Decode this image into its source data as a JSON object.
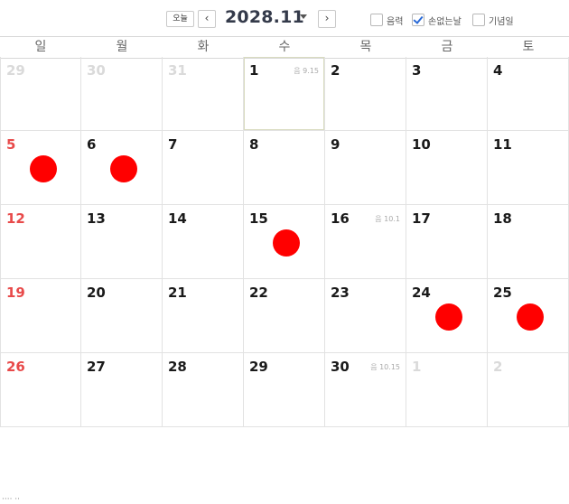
{
  "toolbar": {
    "today_label": "오늘",
    "prev_icon": "chevron-left-icon",
    "next_icon": "chevron-right-icon",
    "month_title": "2028.11",
    "options": [
      {
        "label": "음력",
        "checked": false
      },
      {
        "label": "손없는날",
        "checked": true
      },
      {
        "label": "기념일",
        "checked": false
      }
    ]
  },
  "calendar": {
    "weekdays": [
      "일",
      "월",
      "화",
      "수",
      "목",
      "금",
      "토"
    ],
    "weeks": [
      [
        {
          "day": "29",
          "muted": true
        },
        {
          "day": "30",
          "muted": true
        },
        {
          "day": "31",
          "muted": true
        },
        {
          "day": "1",
          "lunar": "음 9.15",
          "today": true
        },
        {
          "day": "2"
        },
        {
          "day": "3"
        },
        {
          "day": "4"
        }
      ],
      [
        {
          "day": "5",
          "marked": true
        },
        {
          "day": "6",
          "marked": true
        },
        {
          "day": "7"
        },
        {
          "day": "8"
        },
        {
          "day": "9"
        },
        {
          "day": "10"
        },
        {
          "day": "11"
        }
      ],
      [
        {
          "day": "12"
        },
        {
          "day": "13"
        },
        {
          "day": "14"
        },
        {
          "day": "15",
          "marked": true
        },
        {
          "day": "16",
          "lunar": "음 10.1"
        },
        {
          "day": "17"
        },
        {
          "day": "18"
        }
      ],
      [
        {
          "day": "19"
        },
        {
          "day": "20"
        },
        {
          "day": "21"
        },
        {
          "day": "22"
        },
        {
          "day": "23"
        },
        {
          "day": "24",
          "marked": true
        },
        {
          "day": "25",
          "marked": true
        }
      ],
      [
        {
          "day": "26"
        },
        {
          "day": "27"
        },
        {
          "day": "28"
        },
        {
          "day": "29"
        },
        {
          "day": "30",
          "lunar": "음 10.15"
        },
        {
          "day": "1",
          "muted": true
        },
        {
          "day": "2",
          "muted": true
        }
      ]
    ],
    "colors": {
      "sunday": "#e84a4a",
      "marker": "#ff0000",
      "muted": "#dadada"
    }
  },
  "footer": {
    "text": "···· ··"
  }
}
